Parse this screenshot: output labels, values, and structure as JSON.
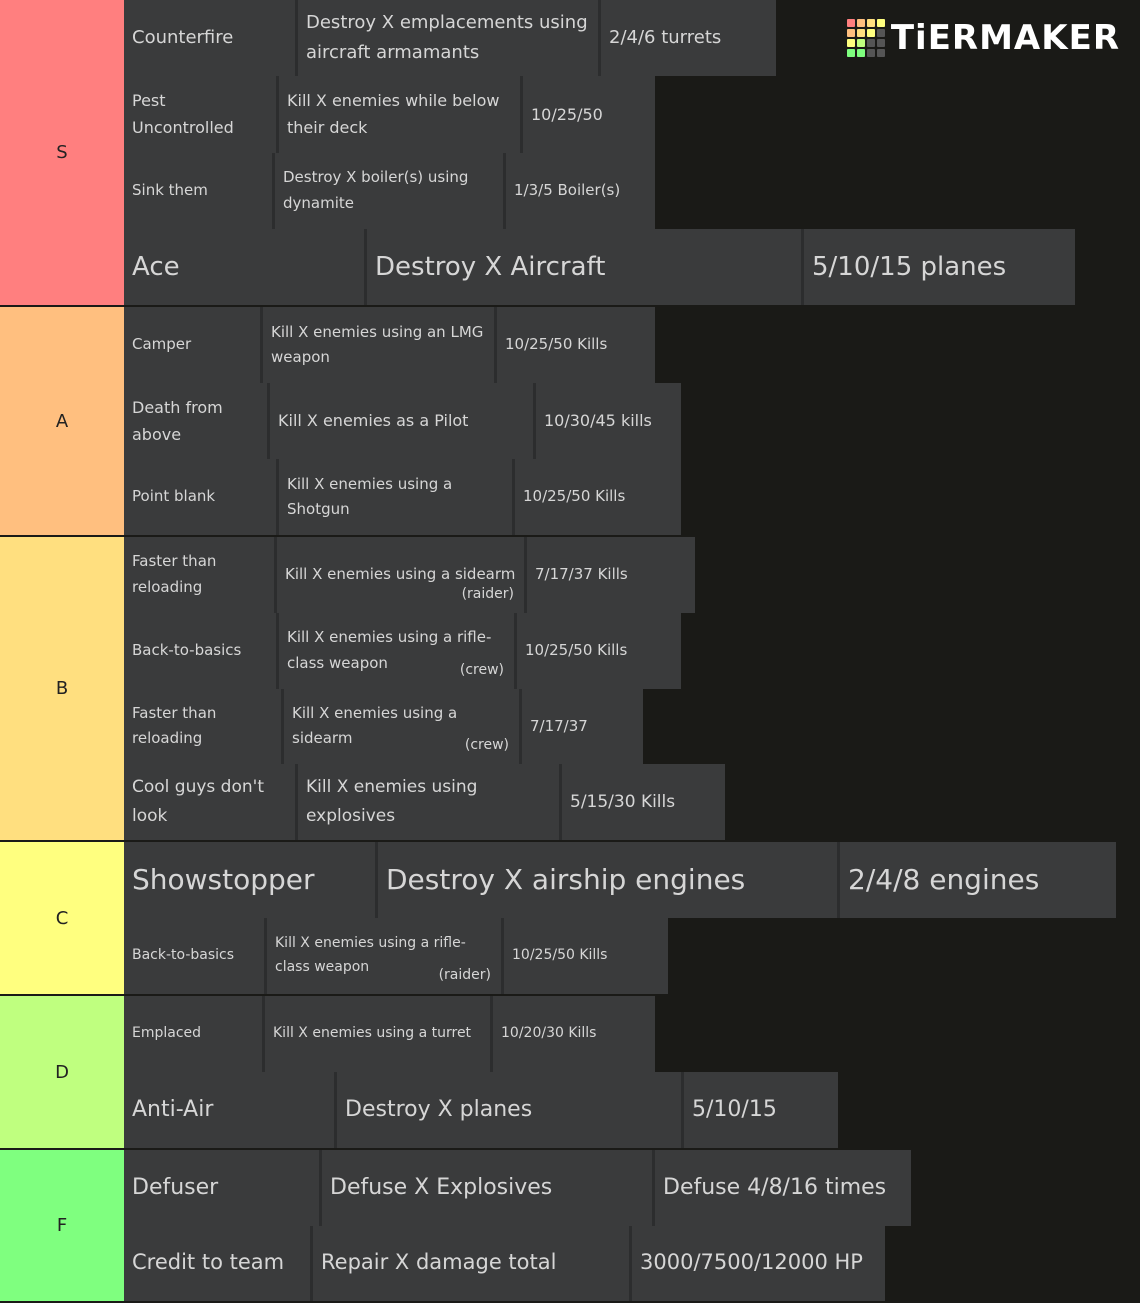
{
  "logo": "TiERMAKER",
  "tiers": [
    {
      "label": "S",
      "color": "#ff7f7f",
      "items": [
        {
          "name": "Counterfire",
          "description": "Destroy X emplacements using aircraft armamants",
          "goal": "2/4/6 turrets"
        },
        {
          "name": "Pest Uncontrolled",
          "description": "Kill X enemies while below their deck",
          "goal": "10/25/50"
        },
        {
          "name": "Sink them",
          "description": "Destroy X boiler(s) using dynamite",
          "goal": "1/3/5 Boiler(s)"
        },
        {
          "name": "Ace",
          "description": "Destroy X Aircraft",
          "goal": "5/10/15 planes"
        }
      ]
    },
    {
      "label": "A",
      "color": "#ffbf7f",
      "items": [
        {
          "name": "Camper",
          "description": "Kill X enemies using an LMG weapon",
          "goal": "10/25/50 Kills"
        },
        {
          "name": "Death from above",
          "description": "Kill X enemies as a Pilot",
          "goal": "10/30/45 kills"
        },
        {
          "name": "Point blank",
          "description": "Kill X enemies using a Shotgun",
          "goal": "10/25/50 Kills"
        }
      ]
    },
    {
      "label": "B",
      "color": "#ffdf7f",
      "items": [
        {
          "name": "Faster than reloading",
          "description": "Kill X enemies using a sidearm",
          "note": "(raider)",
          "goal": "7/17/37 Kills"
        },
        {
          "name": "Back-to-basics",
          "description": "Kill X enemies using a rifle-class weapon",
          "note": "(crew)",
          "goal": "10/25/50 Kills"
        },
        {
          "name": "Faster than reloading",
          "description": "Kill X enemies using a sidearm",
          "note": "(crew)",
          "goal": "7/17/37"
        },
        {
          "name": "Cool guys don't look",
          "description": "Kill X enemies using explosives",
          "goal": "5/15/30 Kills"
        }
      ]
    },
    {
      "label": "C",
      "color": "#ffff7f",
      "items": [
        {
          "name": "Showstopper",
          "description": "Destroy X airship engines",
          "goal": "2/4/8 engines"
        },
        {
          "name": "Back-to-basics",
          "description": "Kill X enemies using a rifle-class weapon",
          "note": "(raider)",
          "goal": "10/25/50 Kills"
        }
      ]
    },
    {
      "label": "D",
      "color": "#bfff7f",
      "items": [
        {
          "name": "Emplaced",
          "description": "Kill X enemies using a turret",
          "goal": "10/20/30 Kills"
        },
        {
          "name": "Anti-Air",
          "description": "Destroy X planes",
          "goal": "5/10/15"
        }
      ]
    },
    {
      "label": "F",
      "color": "#7fff7f",
      "items": [
        {
          "name": "Defuser",
          "description": "Defuse X Explosives",
          "goal": "Defuse 4/8/16 times"
        },
        {
          "name": "Credit to team",
          "description": "Repair X damage total",
          "goal": "3000/7500/12000 HP"
        }
      ]
    }
  ]
}
